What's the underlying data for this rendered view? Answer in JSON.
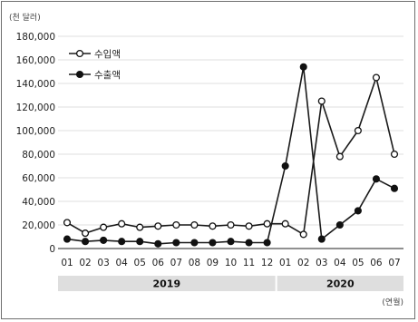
{
  "chart_data": {
    "type": "line",
    "unit_label": "(천 달러)",
    "x_unit_label": "(연월)",
    "categories": [
      "01",
      "02",
      "03",
      "04",
      "05",
      "06",
      "07",
      "08",
      "09",
      "10",
      "11",
      "12",
      "01",
      "02",
      "03",
      "04",
      "05",
      "06",
      "07"
    ],
    "year_groups": [
      {
        "label": "2019",
        "start": 0,
        "end": 11
      },
      {
        "label": "2020",
        "start": 12,
        "end": 18
      }
    ],
    "ylim": [
      0,
      180000
    ],
    "yticks": [
      "0",
      "20,000",
      "40,000",
      "60,000",
      "80,000",
      "100,000",
      "120,000",
      "140,000",
      "160,000",
      "180,000"
    ],
    "ytick_values": [
      0,
      20000,
      40000,
      60000,
      80000,
      100000,
      120000,
      140000,
      160000,
      180000
    ],
    "grid": true,
    "legend_position": "top-left",
    "series": [
      {
        "name": "수입액",
        "marker": "open-circle",
        "values": [
          22000,
          13000,
          18000,
          21000,
          18000,
          19000,
          20000,
          20000,
          19000,
          20000,
          19000,
          21000,
          21000,
          12000,
          125000,
          78000,
          100000,
          145000,
          80000
        ]
      },
      {
        "name": "수출액",
        "marker": "filled-circle",
        "values": [
          8000,
          6000,
          7000,
          6000,
          6000,
          4000,
          5000,
          5000,
          5000,
          6000,
          5000,
          5000,
          70000,
          154000,
          8000,
          20000,
          32000,
          59000,
          51000
        ]
      }
    ]
  }
}
